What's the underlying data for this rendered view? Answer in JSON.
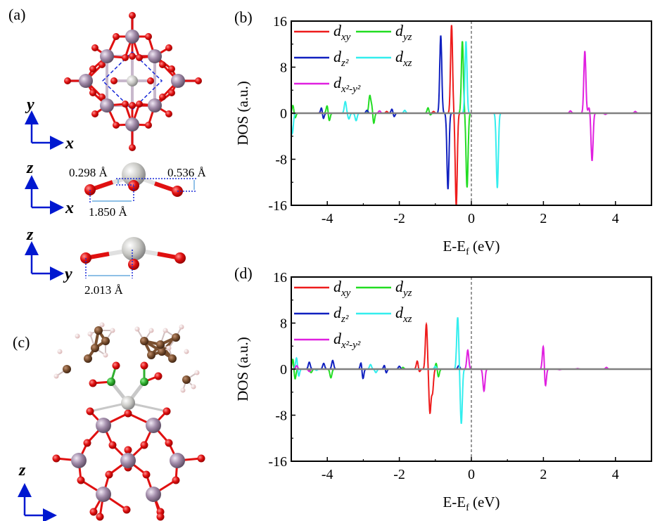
{
  "panel_labels": {
    "a": "(a)",
    "b": "(b)",
    "c": "(c)",
    "d": "(d)"
  },
  "structure": {
    "axes": {
      "x": "x",
      "y": "y",
      "z": "z"
    },
    "distances": {
      "d1": "0.298 Å",
      "d2": "0.536 Å",
      "d3": "1.850 Å",
      "d4": "2.013 Å"
    },
    "colors": {
      "metal_center": "#c8c8c4",
      "oxygen": "#e01010",
      "framework_metal": "#a08aa8",
      "carbon": "#7a5030",
      "hydrogen": "#f0d0d0",
      "boron": "#30b030",
      "axis_arrow": "#0018d0",
      "guide_dashed": "#1a2ad8",
      "dimension": "#4a9ad8"
    }
  },
  "chart_data": [
    {
      "panel": "(b)",
      "type": "line",
      "xlabel": "E-E",
      "xlabel_sub": "f",
      "xlabel_unit": " (eV)",
      "ylabel": "DOS (a.u.)",
      "xlim": [
        -5,
        5
      ],
      "ylim": [
        -16,
        16
      ],
      "xticks": [
        -4,
        -2,
        0,
        2,
        4
      ],
      "yticks": [
        16,
        8,
        0,
        -8,
        -16
      ],
      "fermi_line": 0,
      "legend": "top-left",
      "series": [
        {
          "name": "d",
          "sub": "xy",
          "color": "#ee1c1c",
          "peaks": [
            [
              -0.55,
              15.3
            ],
            [
              -0.42,
              -16
            ],
            [
              -4.2,
              0.6
            ],
            [
              -4.2,
              -0.5
            ],
            [
              -2.35,
              0.3
            ],
            [
              -1.05,
              0.3
            ]
          ]
        },
        {
          "name": "d",
          "sub": "yz",
          "color": "#22dd22",
          "peaks": [
            [
              -0.25,
              12.5
            ],
            [
              -0.12,
              -12.9
            ],
            [
              -4.95,
              1.5
            ],
            [
              -4.9,
              -1.0
            ],
            [
              -4.0,
              1.5
            ],
            [
              -3.95,
              -1.5
            ],
            [
              -2.82,
              3.0
            ],
            [
              -2.72,
              -2.6
            ],
            [
              -2.75,
              2.0
            ],
            [
              -1.2,
              1.0
            ],
            [
              -1.15,
              -0.4
            ]
          ]
        },
        {
          "name": "d",
          "sub": "z²",
          "color": "#1020c0",
          "peaks": [
            [
              -0.85,
              13.5
            ],
            [
              -0.65,
              -13.2
            ],
            [
              -4.15,
              1.5
            ],
            [
              -4.12,
              -1.5
            ],
            [
              -3.85,
              0.8
            ],
            [
              -3.85,
              -0.8
            ],
            [
              -2.9,
              1.5
            ],
            [
              -2.9,
              -1.0
            ],
            [
              -2.2,
              0.8
            ],
            [
              -2.15,
              -0.7
            ],
            [
              -1.7,
              0.5
            ],
            [
              -1.7,
              -0.5
            ]
          ]
        },
        {
          "name": "d",
          "sub": "xz",
          "color": "#33eeee",
          "peaks": [
            [
              -0.15,
              12.5
            ],
            [
              0.72,
              -13
            ],
            [
              -4.97,
              -3.5
            ],
            [
              -3.5,
              2.0
            ],
            [
              -3.4,
              -1.0
            ],
            [
              -3.2,
              -1.3
            ],
            [
              -1.85,
              0.5
            ]
          ]
        },
        {
          "name": "d",
          "sub": "x²-y²",
          "color": "#e020e0",
          "peaks": [
            [
              3.15,
              10.8
            ],
            [
              3.35,
              -8.3
            ],
            [
              3.27,
              1.0
            ],
            [
              3.72,
              0.8
            ],
            [
              3.72,
              -1.0
            ],
            [
              2.1,
              0.5
            ],
            [
              2.1,
              -0.5
            ],
            [
              2.75,
              0.4
            ],
            [
              -4.6,
              1.2
            ],
            [
              -4.6,
              -1.2
            ],
            [
              -2.55,
              0.4
            ],
            [
              4.55,
              0.3
            ]
          ]
        }
      ]
    },
    {
      "panel": "(d)",
      "type": "line",
      "xlabel": "E-E",
      "xlabel_sub": "f",
      "xlabel_unit": " (eV)",
      "ylabel": "DOS (a.u.)",
      "xlim": [
        -5,
        5
      ],
      "ylim": [
        -16,
        16
      ],
      "xticks": [
        -4,
        -2,
        0,
        2,
        4
      ],
      "yticks": [
        16,
        8,
        0,
        -8,
        -16
      ],
      "fermi_line": 0,
      "legend": "top-left",
      "series": [
        {
          "name": "d",
          "sub": "xy",
          "color": "#ee1c1c",
          "peaks": [
            [
              -1.25,
              7.8
            ],
            [
              -1.15,
              -7.5
            ],
            [
              -1.5,
              1.5
            ],
            [
              -1.45,
              -0.6
            ],
            [
              -1.08,
              -4.0
            ]
          ]
        },
        {
          "name": "d",
          "sub": "yz",
          "color": "#22dd22",
          "peaks": [
            [
              -0.97,
              1.2
            ],
            [
              -0.92,
              -1.5
            ],
            [
              -4.95,
              2.0
            ],
            [
              -4.9,
              -2.0
            ],
            [
              -3.9,
              -1.5
            ],
            [
              -4.45,
              -0.6
            ],
            [
              -1.9,
              0.3
            ]
          ]
        },
        {
          "name": "d",
          "sub": "z²",
          "color": "#1020c0",
          "peaks": [
            [
              -3.05,
              2.0
            ],
            [
              -3.02,
              -2.5
            ],
            [
              -2.4,
              1.5
            ],
            [
              -2.38,
              -1.5
            ],
            [
              -4.1,
              1.0
            ],
            [
              -4.5,
              1.2
            ],
            [
              -3.85,
              1.5
            ],
            [
              -2.0,
              0.5
            ],
            [
              -0.35,
              0.6
            ]
          ]
        },
        {
          "name": "d",
          "sub": "xz",
          "color": "#33eeee",
          "peaks": [
            [
              -0.38,
              9.0
            ],
            [
              -0.28,
              -9.5
            ],
            [
              -4.85,
              2.2
            ],
            [
              -4.8,
              -1.5
            ],
            [
              -4.3,
              1.0
            ],
            [
              -4.3,
              -1.2
            ],
            [
              -2.8,
              0.8
            ],
            [
              -2.65,
              -0.6
            ],
            [
              -1.0,
              0.5
            ]
          ]
        },
        {
          "name": "d",
          "sub": "x²-y²",
          "color": "#e020e0",
          "peaks": [
            [
              -0.1,
              3.3
            ],
            [
              0.35,
              -3.8
            ],
            [
              1.05,
              0.7
            ],
            [
              1.05,
              -0.7
            ],
            [
              2.0,
              4.5
            ],
            [
              2.05,
              -3.5
            ],
            [
              2.3,
              1.0
            ],
            [
              2.3,
              -1.0
            ],
            [
              2.45,
              1.2
            ],
            [
              2.45,
              -1.3
            ],
            [
              2.95,
              1.0
            ],
            [
              2.95,
              -0.9
            ],
            [
              3.75,
              0.3
            ],
            [
              -4.5,
              -1.2
            ],
            [
              -4.5,
              0.8
            ],
            [
              -4.85,
              0.6
            ]
          ]
        }
      ]
    }
  ]
}
